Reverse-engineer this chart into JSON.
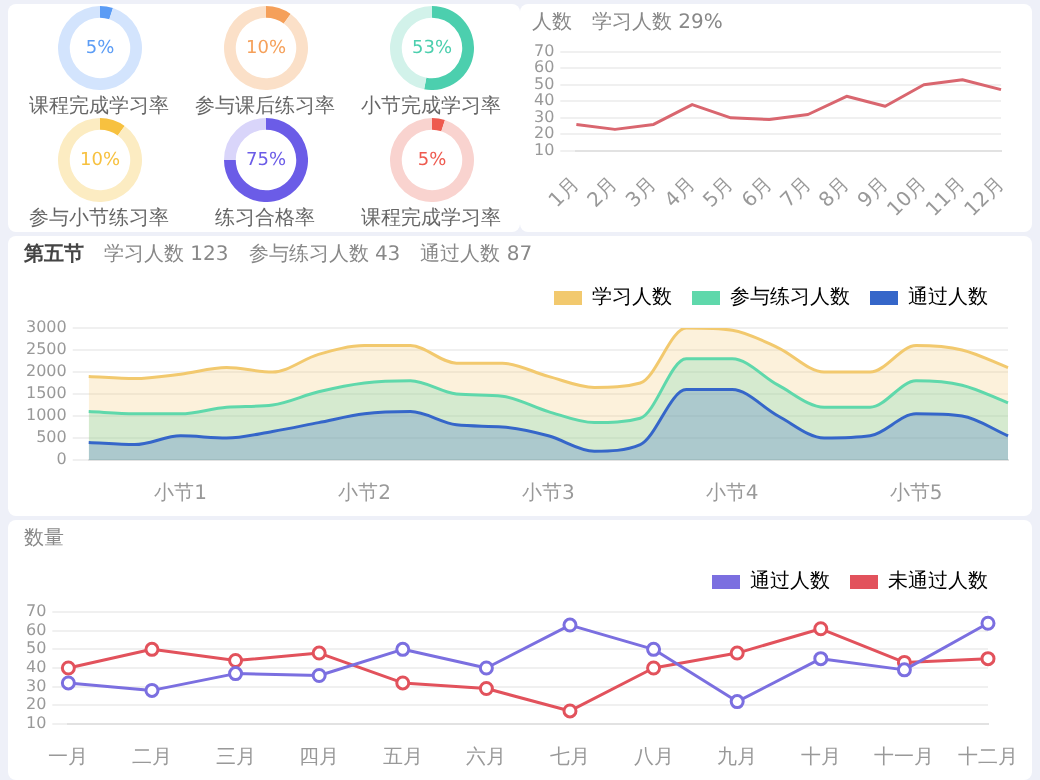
{
  "chart_data": [
    {
      "type": "donut",
      "title": "课程完成学习率",
      "categories": [
        null,
        null
      ],
      "values": [
        5,
        95
      ],
      "colors": [
        "#5b9cf5",
        "#d3e4fd"
      ],
      "annotations": [
        "5%"
      ]
    },
    {
      "type": "donut",
      "title": "参与课后练习率",
      "categories": [
        null,
        null
      ],
      "values": [
        10,
        90
      ],
      "colors": [
        "#f5a05a",
        "#fbe0c8"
      ],
      "annotations": [
        "10%"
      ]
    },
    {
      "type": "donut",
      "title": "小节完成学习率",
      "categories": [
        null,
        null
      ],
      "values": [
        53,
        47
      ],
      "colors": [
        "#4ccfae",
        "#d2f2ea"
      ],
      "annotations": [
        "53%"
      ]
    },
    {
      "type": "donut",
      "title": "参与小节练习率",
      "categories": [
        null,
        null
      ],
      "values": [
        10,
        90
      ],
      "colors": [
        "#f7c13f",
        "#fcecc2"
      ],
      "annotations": [
        "10%"
      ]
    },
    {
      "type": "donut",
      "title": "练习合格率",
      "categories": [
        null,
        null
      ],
      "values": [
        75,
        25
      ],
      "colors": [
        "#6b5ce7",
        "#d9d5fa"
      ],
      "annotations": [
        "75%"
      ]
    },
    {
      "type": "donut",
      "title": "课程完成学习率",
      "categories": [
        null,
        null
      ],
      "values": [
        5,
        95
      ],
      "colors": [
        "#ee5a4f",
        "#f9d3cf"
      ],
      "annotations": [
        "5%"
      ]
    },
    {
      "type": "line",
      "ylabel": "人数",
      "annotations": [
        "学习人数 29%"
      ],
      "categories": [
        "1月",
        "2月",
        "3月",
        "4月",
        "5月",
        "6月",
        "7月",
        "8月",
        "9月",
        "10月",
        "11月",
        "12月"
      ],
      "series": [
        {
          "color": "#d9666f",
          "values": [
            26,
            23,
            26,
            38,
            30,
            29,
            32,
            43,
            37,
            50,
            53,
            47
          ]
        }
      ],
      "ylim": [
        10,
        70
      ],
      "yticks": [
        10,
        20,
        30,
        40,
        50,
        60,
        70
      ],
      "grid": "y",
      "marker": "none"
    },
    {
      "type": "area",
      "annotations": [
        "第五节",
        "学习人数 123",
        "参与练习人数 43",
        "通过人数 87"
      ],
      "categories": [
        null,
        null,
        "小节1",
        null,
        null,
        null,
        "小节2",
        null,
        null,
        null,
        "小节3",
        null,
        null,
        null,
        "小节4",
        null,
        null,
        null,
        "小节5",
        null,
        null
      ],
      "series": [
        {
          "name": "学习人数",
          "color": "#f2c96e",
          "values": [
            1900,
            1850,
            1950,
            2100,
            2000,
            2400,
            2600,
            2600,
            2200,
            2200,
            1900,
            1650,
            1750,
            3000,
            2950,
            2550,
            2000,
            2000,
            2600,
            2500,
            2100
          ]
        },
        {
          "name": "参与练习人数",
          "color": "#5fd8ab",
          "values": [
            1100,
            1050,
            1050,
            1200,
            1250,
            1550,
            1750,
            1800,
            1500,
            1450,
            1100,
            850,
            950,
            2300,
            2300,
            1700,
            1200,
            1200,
            1800,
            1700,
            1300
          ]
        },
        {
          "name": "通过人数",
          "color": "#3566c9",
          "values": [
            400,
            350,
            550,
            500,
            650,
            850,
            1050,
            1100,
            800,
            750,
            550,
            200,
            350,
            1600,
            1600,
            1000,
            500,
            550,
            1050,
            1000,
            550
          ]
        }
      ],
      "ylim": [
        0,
        3000
      ],
      "yticks": [
        0,
        500,
        1000,
        1500,
        2000,
        2500,
        3000
      ],
      "grid": "y",
      "legend": "top right",
      "marker": "none"
    },
    {
      "type": "line",
      "ylabel": "数量",
      "categories": [
        "一月",
        "二月",
        "三月",
        "四月",
        "五月",
        "六月",
        "七月",
        "八月",
        "九月",
        "十月",
        "十一月",
        "十二月"
      ],
      "series": [
        {
          "name": "通过人数",
          "color": "#7b6fe0",
          "values": [
            32,
            28,
            37,
            36,
            50,
            40,
            63,
            50,
            22,
            45,
            39,
            64
          ]
        },
        {
          "name": "未通过人数",
          "color": "#e2525c",
          "values": [
            40,
            50,
            44,
            48,
            32,
            29,
            17,
            40,
            48,
            61,
            43,
            45
          ]
        }
      ],
      "ylim": [
        10,
        70
      ],
      "yticks": [
        10,
        20,
        30,
        40,
        50,
        60,
        70
      ],
      "grid": "y",
      "legend": "top right",
      "marker": "circle"
    }
  ]
}
